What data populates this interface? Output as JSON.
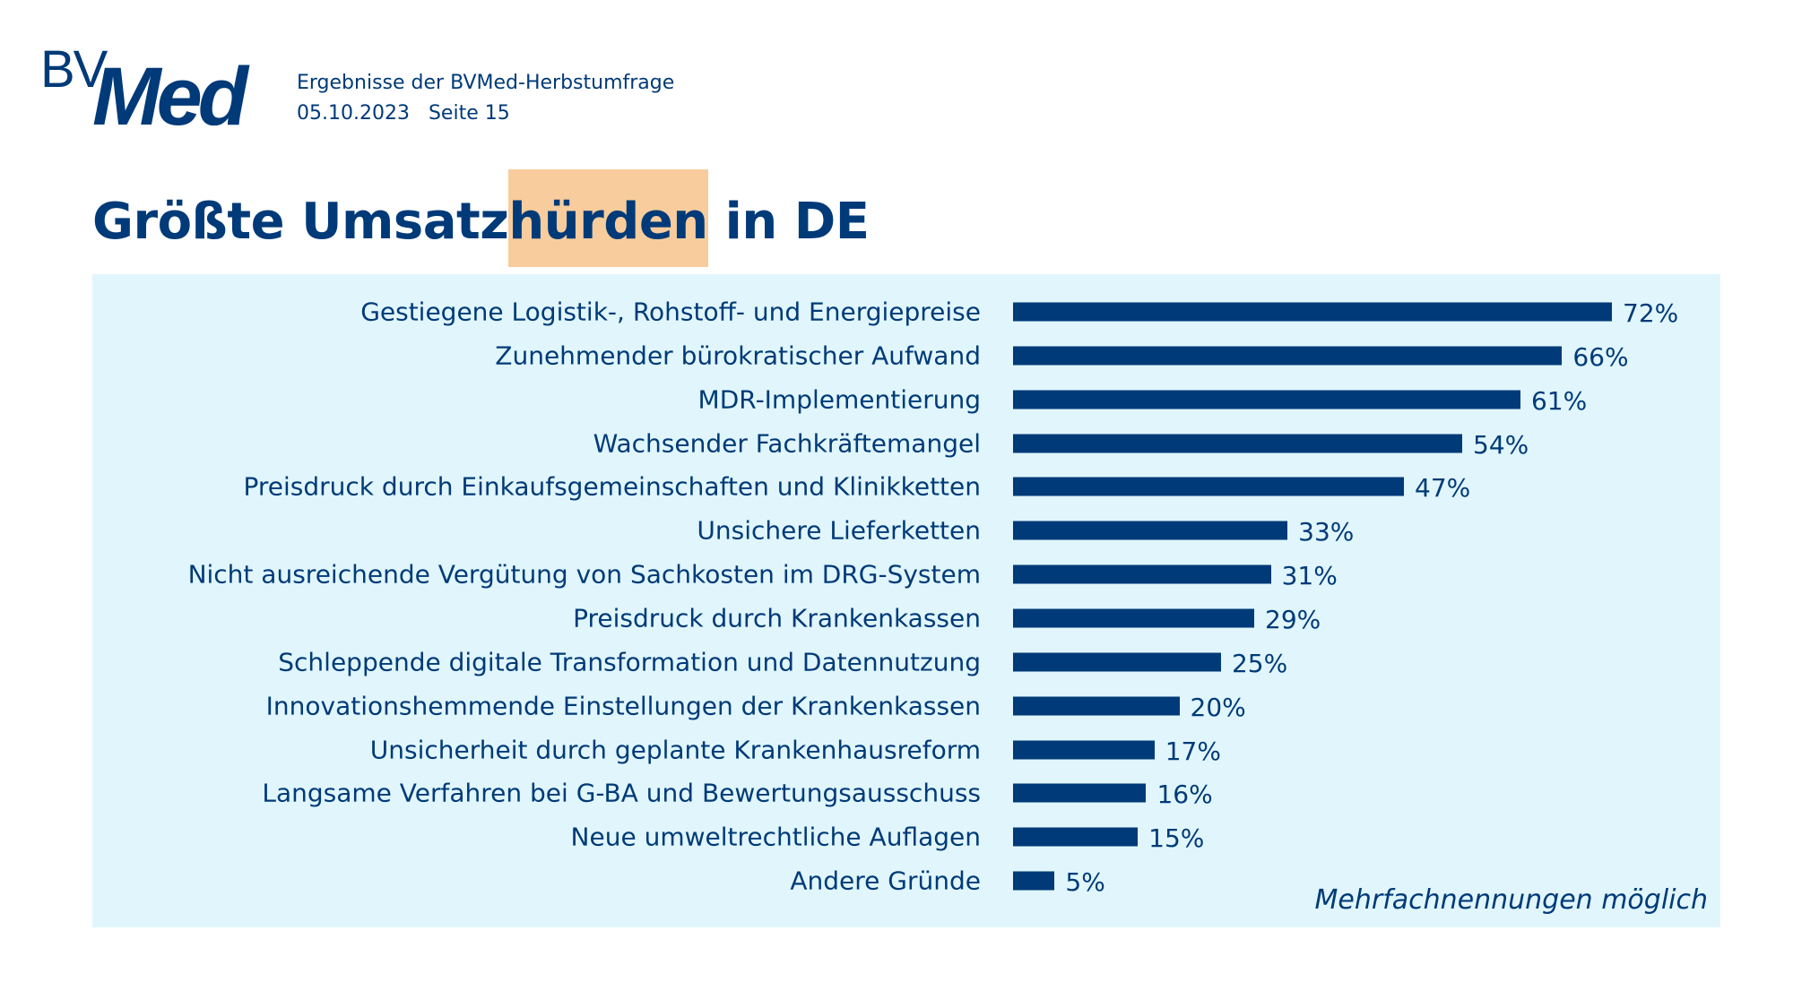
{
  "header": {
    "logo_text": "BVMed",
    "subtitle": "Ergebnisse der BVMed-Herbstumfrage",
    "date": "05.10.2023",
    "page": "Seite 15"
  },
  "colors": {
    "primary": "#003a78",
    "panel": "#e0f6fc",
    "highlight": "#f8cc9c"
  },
  "chart_data": {
    "type": "bar",
    "orientation": "horizontal",
    "title_parts": [
      "Größte Umsatz",
      "hürden",
      " in DE"
    ],
    "categories": [
      "Gestiegene Logistik-, Rohstoff- und Energiepreise",
      "Zunehmender bürokratischer Aufwand",
      "MDR-Implementierung",
      "Wachsender Fachkräftemangel",
      "Preisdruck durch Einkaufsgemeinschaften und Klinikketten",
      "Unsichere Lieferketten",
      "Nicht ausreichende Vergütung von Sachkosten im DRG-System",
      "Preisdruck durch Krankenkassen",
      "Schleppende digitale Transformation und Datennutzung",
      "Innovationshemmende Einstellungen der Krankenkassen",
      "Unsicherheit durch geplante Krankenhausreform",
      "Langsame Verfahren bei G-BA und Bewertungsausschuss",
      "Neue umweltrechtliche Auflagen",
      "Andere Gründe"
    ],
    "values": [
      72,
      66,
      61,
      54,
      47,
      33,
      31,
      29,
      25,
      20,
      17,
      16,
      15,
      5
    ],
    "value_labels": [
      "72%",
      "66%",
      "61%",
      "54%",
      "47%",
      "33%",
      "31%",
      "29%",
      "25%",
      "20%",
      "17%",
      "16%",
      "15%",
      "5%"
    ],
    "unit": "%",
    "grid": false,
    "note": "Mehrfachnennungen möglich"
  }
}
